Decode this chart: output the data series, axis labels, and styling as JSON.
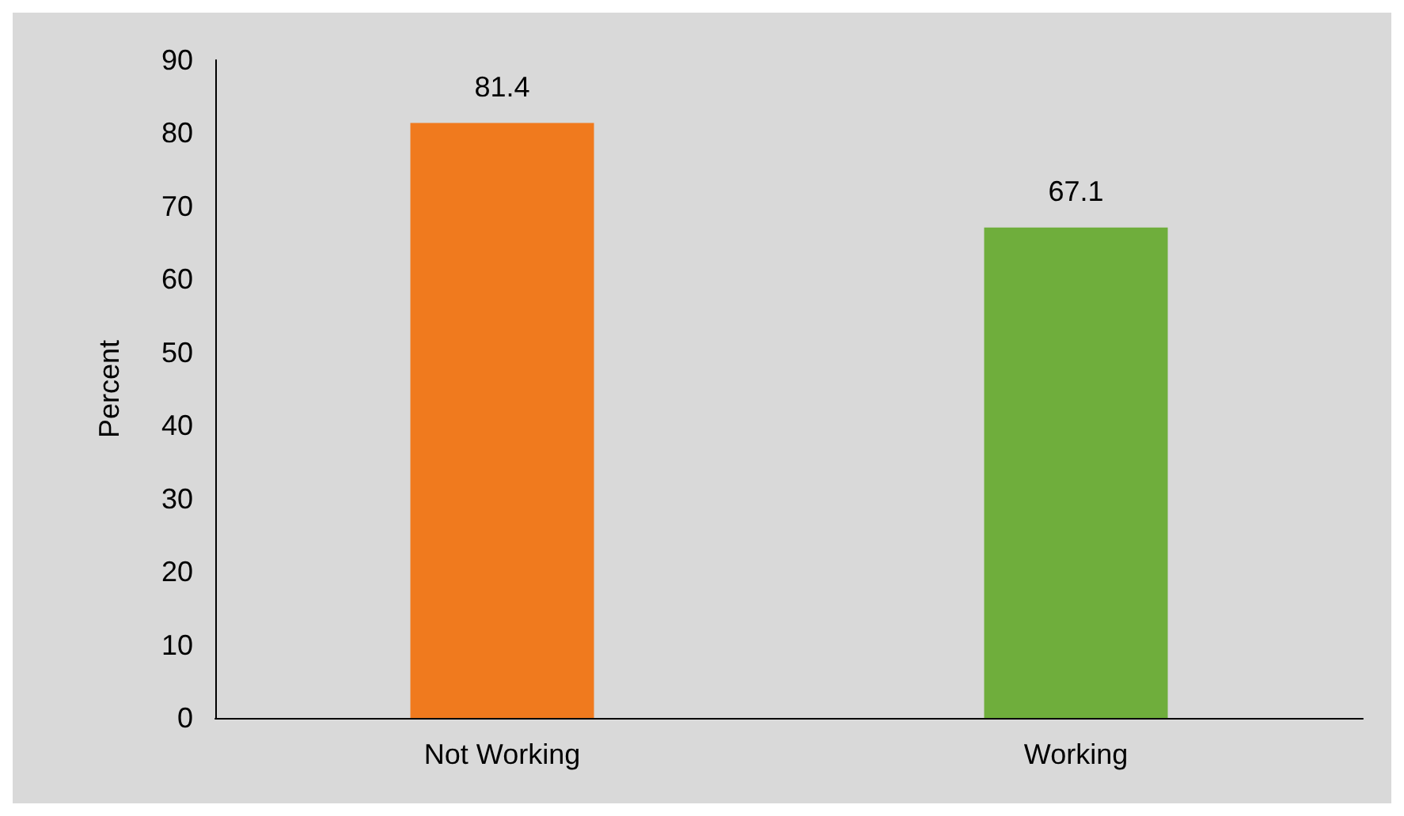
{
  "chart_data": {
    "type": "bar",
    "ylabel": "Percent",
    "categories": [
      "Not Working",
      "Working"
    ],
    "values": [
      81.4,
      67.1
    ],
    "colors": [
      "#f07a1e",
      "#6fae3c"
    ],
    "ylim": [
      0,
      90
    ],
    "yticks": [
      0,
      10,
      20,
      30,
      40,
      50,
      60,
      70,
      80,
      90
    ],
    "data_labels": true
  }
}
